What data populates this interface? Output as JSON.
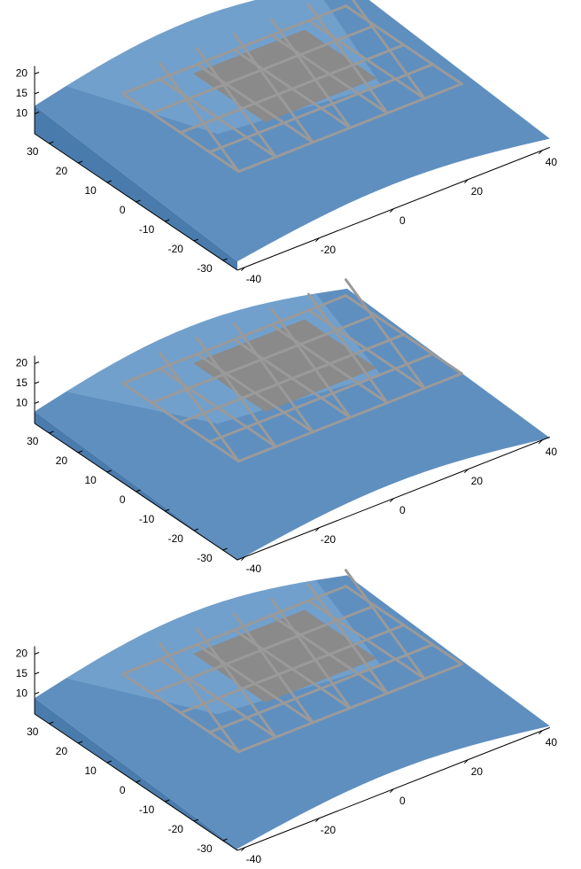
{
  "chart_data": [
    {
      "type": "surface",
      "xlim": [
        -42,
        42
      ],
      "ylim": [
        -35,
        35
      ],
      "zlim": [
        5,
        22
      ],
      "xticks": [
        -40,
        -20,
        0,
        20,
        40
      ],
      "yticks": [
        -30,
        -20,
        -10,
        0,
        10,
        20,
        30
      ],
      "zticks": [
        10,
        15,
        20
      ]
    },
    {
      "type": "surface",
      "xlim": [
        -42,
        42
      ],
      "ylim": [
        -35,
        35
      ],
      "zlim": [
        5,
        22
      ],
      "xticks": [
        -40,
        -20,
        0,
        20,
        40
      ],
      "yticks": [
        -30,
        -20,
        -10,
        0,
        10,
        20,
        30
      ],
      "zticks": [
        10,
        15,
        20
      ]
    },
    {
      "type": "surface",
      "xlim": [
        -42,
        42
      ],
      "ylim": [
        -35,
        35
      ],
      "zlim": [
        5,
        22
      ],
      "xticks": [
        -40,
        -20,
        0,
        20,
        40
      ],
      "yticks": [
        -30,
        -20,
        -10,
        0,
        10,
        20,
        30
      ],
      "zticks": [
        10,
        15,
        20
      ]
    }
  ]
}
